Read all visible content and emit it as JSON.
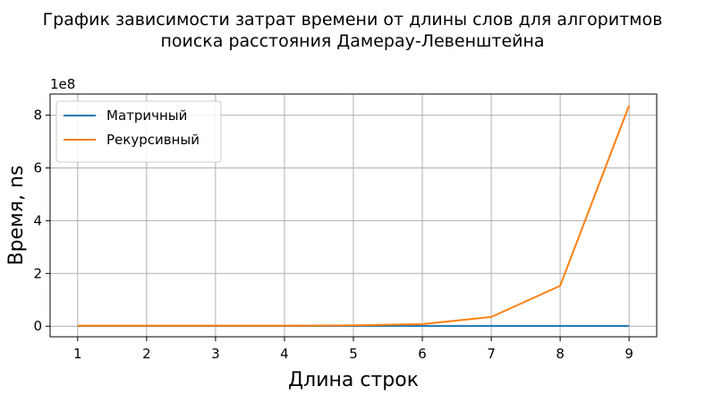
{
  "chart_data": {
    "type": "line",
    "title_lines": [
      "График зависимости затрат времени от длины слов для алгоритмов",
      "поиска расстояния Дамерау-Левенштейна"
    ],
    "xlabel": "Длина строк",
    "ylabel": "Время, ns",
    "y_offset_label": "1e8",
    "x": [
      1,
      2,
      3,
      4,
      5,
      6,
      7,
      8,
      9
    ],
    "xticks": [
      1,
      2,
      3,
      4,
      5,
      6,
      7,
      8,
      9
    ],
    "yticks": [
      0,
      2,
      4,
      6,
      8
    ],
    "xlim": [
      0.6,
      9.4
    ],
    "ylim": [
      -0.4,
      8.8
    ],
    "grid": true,
    "legend_position": "top-left",
    "series": [
      {
        "name": "Матричный",
        "color": "#1f77b4",
        "values": [
          0.01,
          0.01,
          0.01,
          0.01,
          0.01,
          0.01,
          0.01,
          0.01,
          0.01
        ]
      },
      {
        "name": "Рекурсивный",
        "color": "#ff7f0e",
        "values": [
          0.02,
          0.02,
          0.02,
          0.02,
          0.03,
          0.08,
          0.35,
          1.53,
          8.37
        ]
      }
    ]
  }
}
